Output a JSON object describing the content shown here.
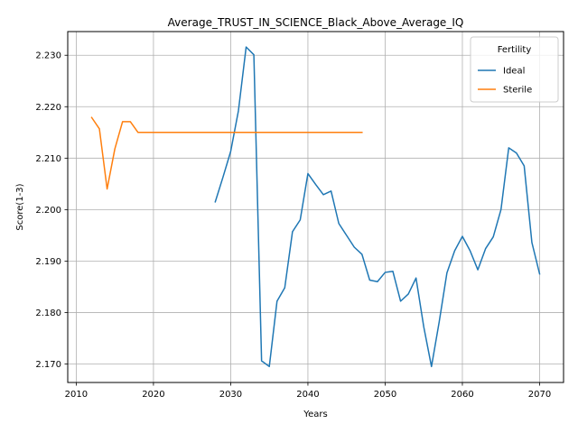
{
  "chart_data": {
    "type": "line",
    "title": "Average_TRUST_IN_SCIENCE_Black_Above_Average_IQ",
    "xlabel": "Years",
    "ylabel": "Score(1-3)",
    "xlim": [
      2008.9,
      2073.1
    ],
    "ylim": [
      2.1664,
      2.2346
    ],
    "xticks": [
      2010,
      2020,
      2030,
      2040,
      2050,
      2060,
      2070
    ],
    "yticks": [
      2.17,
      2.18,
      2.19,
      2.2,
      2.21,
      2.22,
      2.23
    ],
    "xtick_labels": [
      "2010",
      "2020",
      "2030",
      "2040",
      "2050",
      "2060",
      "2070"
    ],
    "ytick_labels": [
      "2.170",
      "2.180",
      "2.190",
      "2.200",
      "2.210",
      "2.220",
      "2.230"
    ],
    "grid": true,
    "legend": {
      "title": "Fertility",
      "position": "top-right"
    },
    "series": [
      {
        "name": "Ideal",
        "color": "#1f77b4",
        "x": [
          2028,
          2029,
          2030,
          2031,
          2032,
          2033,
          2034,
          2035,
          2036,
          2037,
          2038,
          2039,
          2040,
          2041,
          2042,
          2043,
          2044,
          2045,
          2046,
          2047,
          2048,
          2049,
          2050,
          2051,
          2052,
          2053,
          2054,
          2055,
          2056,
          2057,
          2058,
          2059,
          2060,
          2061,
          2062,
          2063,
          2064,
          2065,
          2066,
          2067,
          2068,
          2069,
          2070
        ],
        "y": [
          2.2015,
          2.2063,
          2.2113,
          2.2192,
          2.2316,
          2.2301,
          2.1706,
          2.1695,
          2.1822,
          2.1848,
          2.1957,
          2.198,
          2.207,
          2.2049,
          2.2029,
          2.2036,
          2.1973,
          2.195,
          2.1927,
          2.1913,
          2.1863,
          2.186,
          2.1878,
          2.188,
          2.1822,
          2.1836,
          2.1867,
          2.1772,
          2.1695,
          2.1782,
          2.1877,
          2.192,
          2.1948,
          2.192,
          2.1883,
          2.1924,
          2.1947,
          2.2,
          2.212,
          2.211,
          2.2085,
          2.1936,
          2.1875
        ]
      },
      {
        "name": "Sterile",
        "color": "#ff7f0e",
        "x": [
          2012,
          2013,
          2014,
          2015,
          2016,
          2017,
          2018,
          2019,
          2020,
          2021,
          2022,
          2023,
          2024,
          2025,
          2026,
          2027,
          2028,
          2029,
          2030,
          2031,
          2032,
          2033,
          2034,
          2035,
          2036,
          2037,
          2038,
          2039,
          2040,
          2041,
          2042,
          2043,
          2044,
          2045,
          2046,
          2047
        ],
        "y": [
          2.2179,
          2.2157,
          2.204,
          2.2118,
          2.2171,
          2.2171,
          2.215,
          2.215,
          2.215,
          2.215,
          2.215,
          2.215,
          2.215,
          2.215,
          2.215,
          2.215,
          2.215,
          2.215,
          2.215,
          2.215,
          2.215,
          2.215,
          2.215,
          2.215,
          2.215,
          2.215,
          2.215,
          2.215,
          2.215,
          2.215,
          2.215,
          2.215,
          2.215,
          2.215,
          2.215,
          2.215
        ]
      }
    ]
  }
}
